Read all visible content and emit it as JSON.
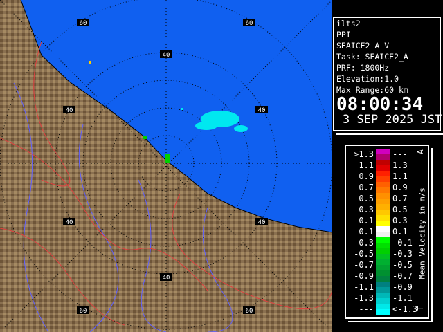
{
  "info": {
    "site": "ilts2",
    "mode": "PPI",
    "product": "SEAICE2_A_V",
    "task": "Task: SEAICE2_A",
    "prf": "PRF: 1800Hz",
    "elevation": "Elevation:1.0",
    "max_range": "Max Range:60 km",
    "time": "08:00:34",
    "date": "3 SEP 2025 JST"
  },
  "map": {
    "sea_color": "#1060f0",
    "land_color": "#8a7050",
    "ring_labels": [
      "40",
      "40",
      "40",
      "40",
      "40",
      "40",
      "60",
      "60",
      "60",
      "60"
    ]
  },
  "legend": {
    "title": "Mean Velocity in m/s",
    "top_marker": "A",
    "bottom_marker": "T",
    "rows": [
      {
        "lo": ">1.3",
        "hi": "---",
        "colors": [
          "#d000c0",
          "#b00070"
        ]
      },
      {
        "lo": "1.1",
        "hi": "1.3",
        "colors": [
          "#c00000",
          "#e00000"
        ]
      },
      {
        "lo": "0.9",
        "hi": "1.1",
        "colors": [
          "#ff2000",
          "#ff4000"
        ]
      },
      {
        "lo": "0.7",
        "hi": "0.9",
        "colors": [
          "#ff6000",
          "#ff7800"
        ]
      },
      {
        "lo": "0.5",
        "hi": "0.7",
        "colors": [
          "#ff9000",
          "#ffa000"
        ]
      },
      {
        "lo": "0.3",
        "hi": "0.5",
        "colors": [
          "#ffb000",
          "#ffc800"
        ]
      },
      {
        "lo": "0.1",
        "hi": "0.3",
        "colors": [
          "#ffe000",
          "#ffff00"
        ]
      },
      {
        "lo": "-0.1",
        "hi": "0.1",
        "colors": [
          "#ffffff",
          "#f0f0f0"
        ]
      },
      {
        "lo": "-0.3",
        "hi": "-0.1",
        "colors": [
          "#00ff00",
          "#00e000"
        ]
      },
      {
        "lo": "-0.5",
        "hi": "-0.3",
        "colors": [
          "#00d000",
          "#00c020"
        ]
      },
      {
        "lo": "-0.7",
        "hi": "-0.5",
        "colors": [
          "#00b030",
          "#00a030"
        ]
      },
      {
        "lo": "-0.9",
        "hi": "-0.7",
        "colors": [
          "#009030",
          "#008040"
        ]
      },
      {
        "lo": "-1.1",
        "hi": "-0.9",
        "colors": [
          "#008080",
          "#009898"
        ]
      },
      {
        "lo": "-1.3",
        "hi": "-1.1",
        "colors": [
          "#00b8b8",
          "#00d0d0"
        ]
      },
      {
        "lo": "---",
        "hi": "<-1.3",
        "colors": [
          "#00e8e8",
          "#00ffff"
        ]
      }
    ]
  }
}
